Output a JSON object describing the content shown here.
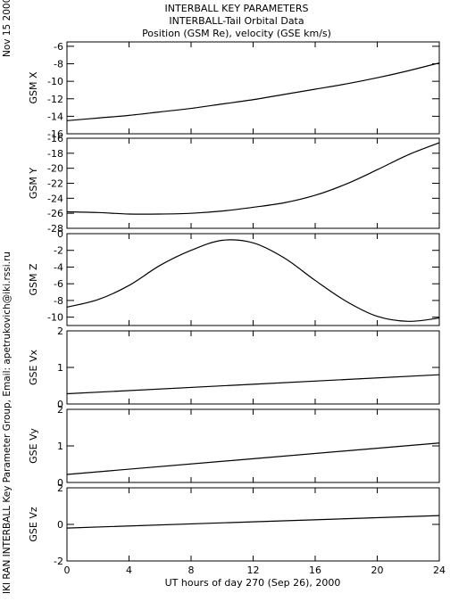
{
  "header": {
    "date": "Nov 15 2000",
    "title_lines": [
      "INTERBALL KEY PARAMETERS",
      "INTERBALL-Tail Orbital Data",
      "Position (GSM Re), velocity (GSE km/s)"
    ],
    "credit": "IKI RAN INTERBALL Key Parameter Group, Email: apetrukovich@iki.rssi.ru"
  },
  "chart_data": {
    "type": "line",
    "x_label": "UT hours of day 270 (Sep 26), 2000",
    "x_range": [
      0,
      24
    ],
    "x_ticks": [
      0,
      4,
      8,
      12,
      16,
      20,
      24
    ],
    "panels": [
      {
        "ylabel": "GSM X",
        "ylim": [
          -16,
          -5.5
        ],
        "yticks": [
          -16,
          -14,
          -12,
          -10,
          -8,
          -6
        ],
        "x": [
          0,
          2,
          4,
          6,
          8,
          10,
          12,
          14,
          16,
          18,
          20,
          22,
          24
        ],
        "y": [
          -14.5,
          -14.2,
          -13.9,
          -13.5,
          -13.1,
          -12.6,
          -12.1,
          -11.5,
          -10.9,
          -10.3,
          -9.6,
          -8.8,
          -7.9
        ]
      },
      {
        "ylabel": "GSM Y",
        "ylim": [
          -28,
          -16
        ],
        "yticks": [
          -28,
          -26,
          -24,
          -22,
          -20,
          -18,
          -16
        ],
        "x": [
          0,
          2,
          4,
          6,
          8,
          10,
          12,
          14,
          16,
          18,
          20,
          22,
          24
        ],
        "y": [
          -25.8,
          -25.9,
          -26.1,
          -26.1,
          -26.0,
          -25.7,
          -25.2,
          -24.6,
          -23.6,
          -22.1,
          -20.2,
          -18.2,
          -16.6
        ]
      },
      {
        "ylabel": "GSM Z",
        "ylim": [
          -11,
          0
        ],
        "yticks": [
          -10,
          -8,
          -6,
          -4,
          -2,
          0
        ],
        "x": [
          0,
          2,
          4,
          6,
          8,
          10,
          12,
          14,
          16,
          18,
          20,
          22,
          24
        ],
        "y": [
          -8.8,
          -7.9,
          -6.2,
          -3.8,
          -2.0,
          -0.8,
          -1.1,
          -2.9,
          -5.6,
          -8.1,
          -9.9,
          -10.5,
          -10.1
        ]
      },
      {
        "ylabel": "GSE Vx",
        "ylim": [
          0,
          2
        ],
        "yticks": [
          0,
          1,
          2
        ],
        "x": [
          0,
          24
        ],
        "y": [
          0.28,
          0.8
        ]
      },
      {
        "ylabel": "GSE Vy",
        "ylim": [
          0,
          2
        ],
        "yticks": [
          0,
          1,
          2
        ],
        "x": [
          0,
          24
        ],
        "y": [
          0.22,
          1.08
        ]
      },
      {
        "ylabel": "GSE Vz",
        "ylim": [
          -2,
          2
        ],
        "yticks": [
          -2,
          0,
          2
        ],
        "x": [
          0,
          24
        ],
        "y": [
          -0.2,
          0.48
        ]
      }
    ]
  }
}
